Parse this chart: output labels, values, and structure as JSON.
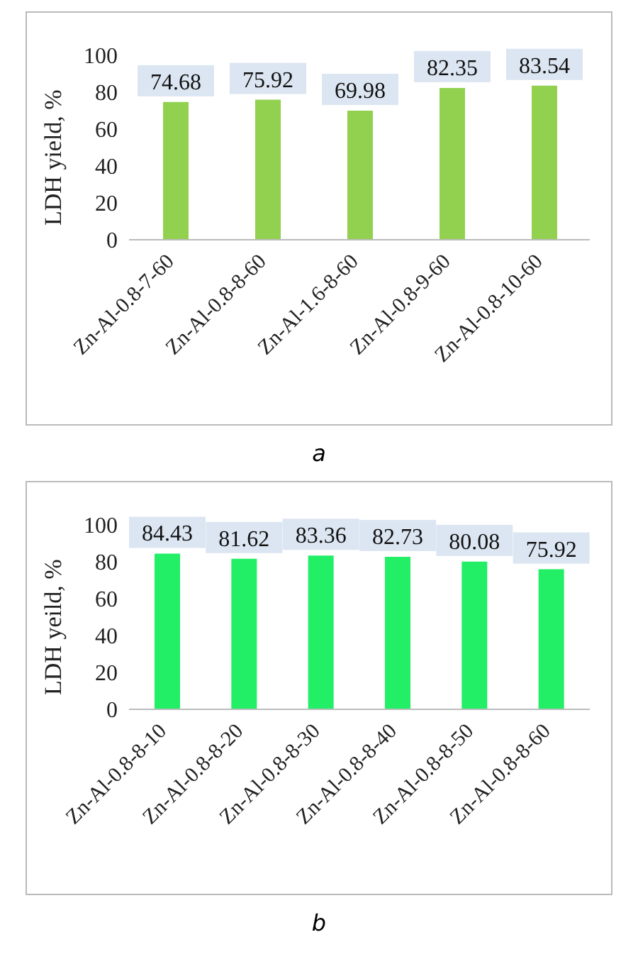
{
  "chart_data": [
    {
      "type": "bar",
      "ylabel": "LDH yield, %",
      "categories": [
        "Zn-Al-0.8-7-60",
        "Zn-Al-0.8-8-60",
        "Zn-Al-1.6-8-60",
        "Zn-Al-0.8-9-60",
        "Zn-Al-0.8-10-60"
      ],
      "values": [
        74.68,
        75.92,
        69.98,
        82.35,
        83.54
      ],
      "color": "#92d050",
      "ylim": [
        0,
        100
      ],
      "yticks": [
        0,
        20,
        40,
        60,
        80,
        100
      ],
      "data_labels": true,
      "annotations": [
        "a"
      ]
    },
    {
      "type": "bar",
      "ylabel": "LDH yeild, %",
      "categories": [
        "Zn-Al-0.8-8-10",
        "Zn-Al-0.8-8-20",
        "Zn-Al-0.8-8-30",
        "Zn-Al-0.8-8-40",
        "Zn-Al-0.8-8-50",
        "Zn-Al-0.8-8-60"
      ],
      "values": [
        84.43,
        81.62,
        83.36,
        82.73,
        80.08,
        75.92
      ],
      "color": "#22ee66",
      "ylim": [
        0,
        100
      ],
      "yticks": [
        0,
        20,
        40,
        60,
        80,
        100
      ],
      "data_labels": true,
      "annotations": [
        "b"
      ]
    }
  ]
}
